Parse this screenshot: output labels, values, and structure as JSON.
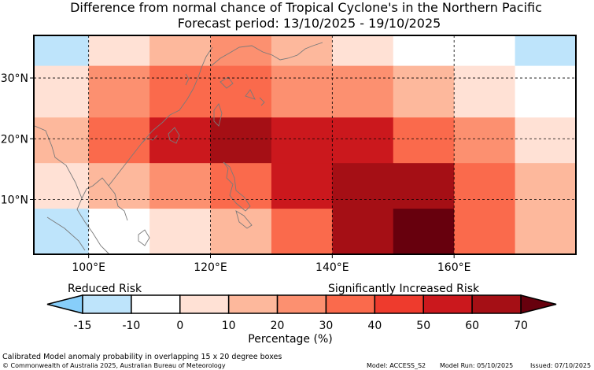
{
  "header": {
    "title": "Difference from normal chance of Tropical Cyclone's in the Northern Pacific",
    "subtitle": "Forecast period: 13/10/2025 - 19/10/2025"
  },
  "chart_data": {
    "type": "heatmap",
    "title": "Difference from normal chance of Tropical Cyclone's in the Northern Pacific",
    "subtitle": "Forecast period: 13/10/2025 - 19/10/2025",
    "x_range_deg_east": [
      91,
      180
    ],
    "y_range_deg_north": [
      1,
      37
    ],
    "x_ticks": [
      {
        "value": 100,
        "label": "100°E"
      },
      {
        "value": 120,
        "label": "120°E"
      },
      {
        "value": 140,
        "label": "140°E"
      },
      {
        "value": 160,
        "label": "160°E"
      }
    ],
    "y_ticks": [
      {
        "value": 10,
        "label": "10°N"
      },
      {
        "value": 20,
        "label": "20°N"
      },
      {
        "value": 30,
        "label": "30°N"
      }
    ],
    "grid": "dashed lines at labelled ticks",
    "bin_edges_lon": [
      91,
      100,
      110,
      120,
      130,
      140,
      150,
      160,
      170,
      180
    ],
    "bin_edges_lat": [
      37,
      32,
      23.5,
      16,
      8.5,
      1
    ],
    "values_pct": [
      [
        -15,
        0,
        10,
        20,
        10,
        0,
        -10,
        -10,
        -15
      ],
      [
        0,
        20,
        30,
        30,
        25,
        20,
        10,
        0,
        -10
      ],
      [
        10,
        30,
        50,
        60,
        50,
        50,
        30,
        20,
        0
      ],
      [
        0,
        10,
        25,
        30,
        50,
        60,
        60,
        30,
        10
      ],
      [
        -15,
        -10,
        0,
        10,
        30,
        60,
        70,
        30,
        10
      ]
    ],
    "colorbar": {
      "label": "Percentage (%)",
      "ticks": [
        -15,
        -10,
        0,
        10,
        20,
        30,
        40,
        50,
        60,
        70
      ],
      "levels": [
        {
          "min": -20,
          "max": -15,
          "color": "#87CEFA"
        },
        {
          "min": -15,
          "max": -10,
          "color": "#BEE4FB"
        },
        {
          "min": -10,
          "max": 0,
          "color": "#FFFFFF"
        },
        {
          "min": 0,
          "max": 10,
          "color": "#FFE1D5"
        },
        {
          "min": 10,
          "max": 20,
          "color": "#FDB89C"
        },
        {
          "min": 20,
          "max": 30,
          "color": "#FC9070"
        },
        {
          "min": 30,
          "max": 40,
          "color": "#FA6A4C"
        },
        {
          "min": 40,
          "max": 50,
          "color": "#EE3B2D"
        },
        {
          "min": 50,
          "max": 60,
          "color": "#CB181D"
        },
        {
          "min": 60,
          "max": 70,
          "color": "#A50F15"
        },
        {
          "min": 70,
          "max": 80,
          "color": "#67000D"
        }
      ],
      "reduced_label": "Reduced Risk",
      "increased_label": "Significantly Increased Risk"
    }
  },
  "footer": {
    "note": "Calibrated Model anomaly probability in overlapping 15 x 20 degree boxes",
    "copyright": "© Commonwealth of Australia 2025, Australian Bureau of Meteorology",
    "model": "Model: ACCESS_S2",
    "model_run": "Model Run: 05/10/2025",
    "issued": "Issued: 07/10/2025"
  }
}
